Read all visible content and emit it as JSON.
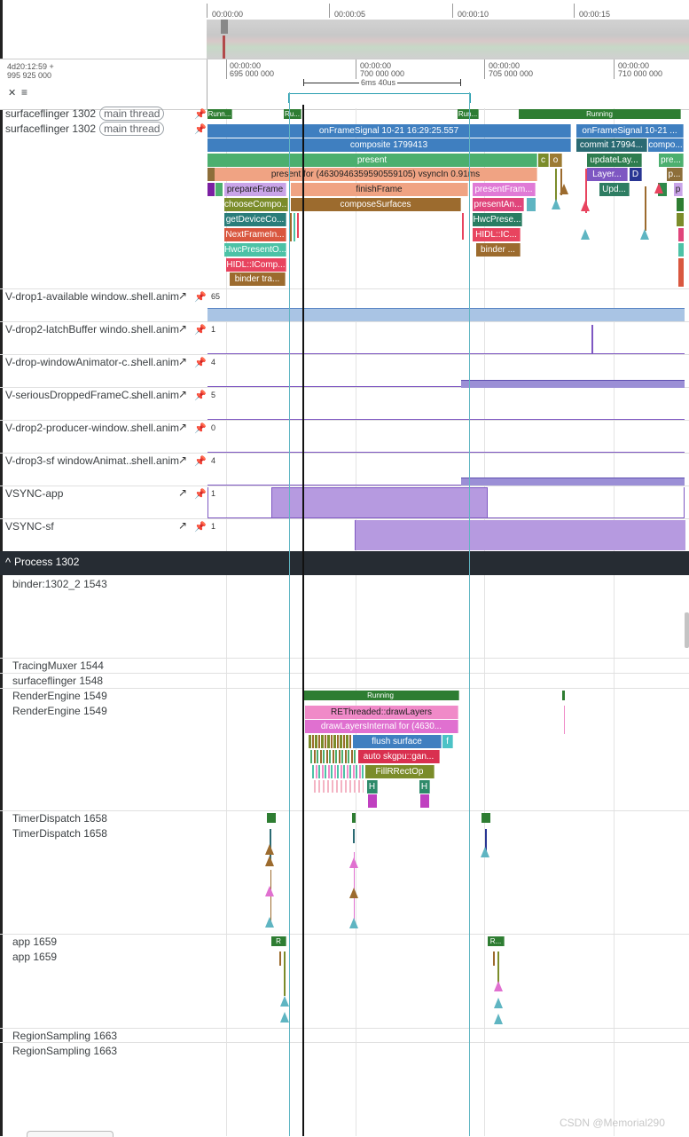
{
  "overview": {
    "ticks": [
      "00:00:00",
      "00:00:05",
      "00:00:10",
      "00:00:15"
    ]
  },
  "timeaxis": {
    "offset_line1": "4d20:12:59  +",
    "offset_line2": "995 925 000",
    "ticks": [
      {
        "top": "00:00:00",
        "bottom": "695 000 000"
      },
      {
        "top": "00:00:00",
        "bottom": "700 000 000"
      },
      {
        "top": "00:00:00",
        "bottom": "705 000 000"
      },
      {
        "top": "00:00:00",
        "bottom": "710 000 000"
      }
    ],
    "span_label": "6ms 40us"
  },
  "sf_tracks": {
    "name1": "surfaceflinger 1302",
    "name2": "surfaceflinger 1302",
    "pill": "main thread"
  },
  "sf_states": [
    {
      "label": "Runn..."
    },
    {
      "label": "Ru..."
    },
    {
      "label": "Run..."
    },
    {
      "label": "Running"
    }
  ],
  "sf_slices": [
    {
      "label": "onFrameSignal 10-21 16:29:25.557",
      "color": "#3f7fc0"
    },
    {
      "label": "onFrameSignal 10-21 ...",
      "color": "#3f7fc0"
    },
    {
      "label": "composite 1799413",
      "color": "#3f7fc0"
    },
    {
      "label": "commit 17994...",
      "color": "#2a6a73"
    },
    {
      "label": "compo...",
      "color": "#3f7fc0"
    },
    {
      "label": "present",
      "color": "#4caf6f"
    },
    {
      "label": "c",
      "color": "#7b8c2a"
    },
    {
      "label": "o",
      "color": "#9c7b32"
    },
    {
      "label": "updateLay...",
      "color": "#2e7d4f"
    },
    {
      "label": "pre...",
      "color": "#4caf6f"
    },
    {
      "label": "present for  (4630946359590559105) vsyncIn 0.91ms",
      "color": "#f0a383"
    },
    {
      "label": "Layer...",
      "color": "#7e57c2"
    },
    {
      "label": "D",
      "color": "#283593"
    },
    {
      "label": "p...",
      "color": "#8d6e3a"
    },
    {
      "label": "prepareFrame",
      "color": "#c9a4e8"
    },
    {
      "label": "finishFrame",
      "color": "#f0a383"
    },
    {
      "label": "presentFram...",
      "color": "#e07ad6"
    },
    {
      "label": "Upd...",
      "color": "#2e7d62"
    },
    {
      "label": "p",
      "color": "#c9a4e8"
    },
    {
      "label": "chooseCompo...",
      "color": "#7b8c2a"
    },
    {
      "label": "composeSurfaces",
      "color": "#9c6b2e"
    },
    {
      "label": "presentAn...",
      "color": "#e0457b"
    },
    {
      "label": "getDeviceCo...",
      "color": "#2a7d7a"
    },
    {
      "label": "HwcPrese...",
      "color": "#2a7d62"
    },
    {
      "label": "NextFrameIn...",
      "color": "#d9573f"
    },
    {
      "label": "HIDL::IC...",
      "color": "#e8445f"
    },
    {
      "label": "HwcPresentO...",
      "color": "#4cc2a6"
    },
    {
      "label": "binder ...",
      "color": "#9c6b2e"
    },
    {
      "label": "HIDL::IComp...",
      "color": "#e8445f"
    },
    {
      "label": "binder tra...",
      "color": "#9c6b2e"
    }
  ],
  "counters": [
    {
      "name": "V-drop1-available window...",
      "process": "shell.anim",
      "value": "65"
    },
    {
      "name": "V-drop2-latchBuffer windo...",
      "process": "shell.anim",
      "value": "1"
    },
    {
      "name": "V-drop-windowAnimator-c...",
      "process": "shell.anim",
      "value": "4"
    },
    {
      "name": "V-seriousDroppedFrameC...",
      "process": "shell.anim",
      "value": "5"
    },
    {
      "name": "V-drop2-producer-window...",
      "process": "shell.anim",
      "value": "0"
    },
    {
      "name": "V-drop3-sf windowAnimat...",
      "process": "shell.anim",
      "value": "4"
    },
    {
      "name": "VSYNC-app",
      "process": "",
      "value": "1"
    },
    {
      "name": "VSYNC-sf",
      "process": "",
      "value": "1"
    }
  ],
  "process_header": {
    "caret": "^",
    "label": "Process 1302"
  },
  "threads": [
    {
      "label": "binder:1302_2 1543"
    },
    {
      "label": "TracingMuxer 1544"
    },
    {
      "label": "surfaceflinger 1548"
    },
    {
      "label": "RenderEngine 1549"
    },
    {
      "label": "RenderEngine 1549"
    },
    {
      "label": "TimerDispatch 1658"
    },
    {
      "label": "TimerDispatch 1658"
    },
    {
      "label": "app 1659"
    },
    {
      "label": "app 1659"
    },
    {
      "label": "RegionSampling 1663"
    },
    {
      "label": "RegionSampling 1663"
    }
  ],
  "re_state": {
    "label": "Running"
  },
  "re_slices": [
    {
      "label": "REThreaded::drawLayers",
      "color": "#f08ac8"
    },
    {
      "label": "drawLayersInternal for  (4630...",
      "color": "#e070d0"
    },
    {
      "label": "flush surface",
      "color": "#3f7fc0"
    },
    {
      "label": "f",
      "color": "#4cc2c6"
    },
    {
      "label": "auto skgpu::gan...",
      "color": "#d9304f"
    },
    {
      "label": "FillRRectOp",
      "color": "#7b8c2a"
    },
    {
      "label": "H",
      "color": "#2e8a6a"
    },
    {
      "label": "H",
      "color": "#2e8a6a"
    }
  ],
  "app_states": [
    {
      "label": "R"
    },
    {
      "label": "R..."
    }
  ],
  "watermark": "CSDN @Memorial290"
}
